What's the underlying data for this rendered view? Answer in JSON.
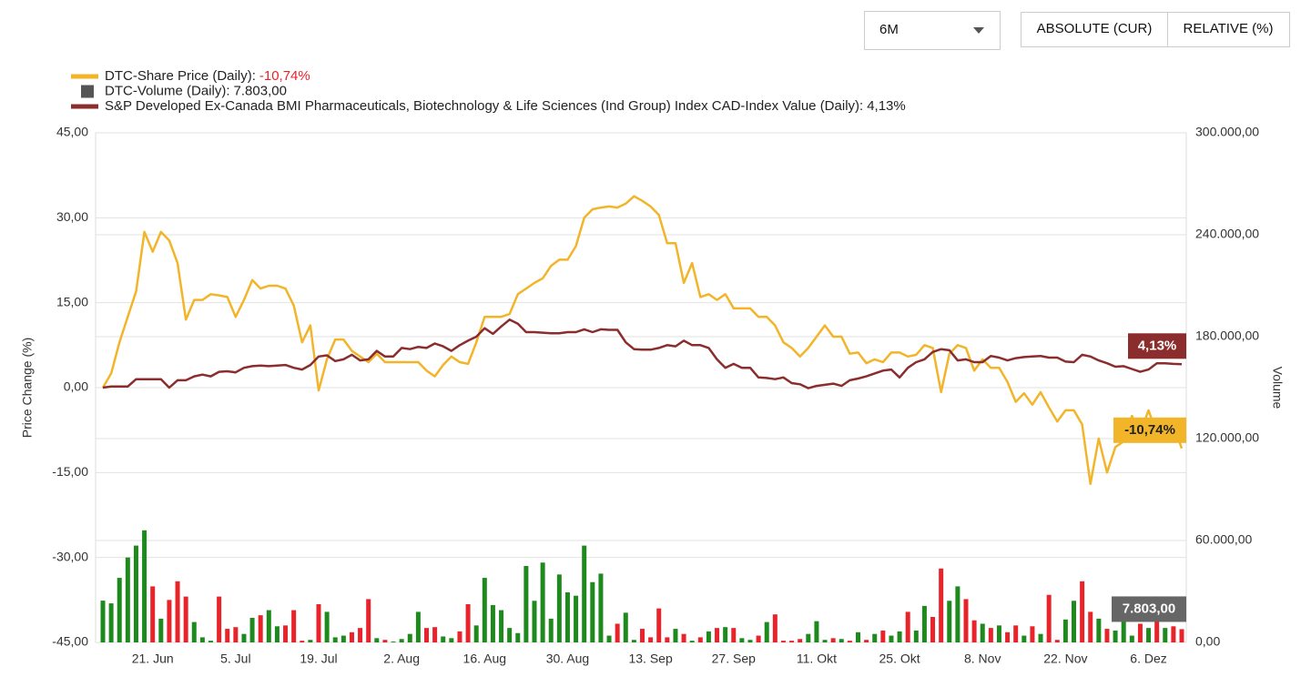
{
  "controls": {
    "period": "6M",
    "absolute": "ABSOLUTE (CUR)",
    "relative": "RELATIVE (%)"
  },
  "chart_data": {
    "type": "line",
    "y_label": "Price Change (%)",
    "y2_label": "Volume",
    "categories": [
      null,
      null,
      null,
      null,
      null,
      null,
      "21. Jun",
      null,
      null,
      null,
      null,
      null,
      null,
      null,
      null,
      null,
      "5. Jul",
      null,
      null,
      null,
      null,
      null,
      null,
      null,
      null,
      null,
      "19. Jul",
      null,
      null,
      null,
      null,
      null,
      null,
      null,
      null,
      null,
      "2. Aug",
      null,
      null,
      null,
      null,
      null,
      null,
      null,
      null,
      null,
      "16. Aug",
      null,
      null,
      null,
      null,
      null,
      null,
      null,
      null,
      null,
      "30. Aug",
      null,
      null,
      null,
      null,
      null,
      null,
      null,
      null,
      null,
      "13. Sep",
      null,
      null,
      null,
      null,
      null,
      null,
      null,
      null,
      null,
      "27. Sep",
      null,
      null,
      null,
      null,
      null,
      null,
      null,
      null,
      null,
      "11. Okt",
      null,
      null,
      null,
      null,
      null,
      null,
      null,
      null,
      null,
      "25. Okt",
      null,
      null,
      null,
      null,
      null,
      null,
      null,
      null,
      null,
      "8. Nov",
      null,
      null,
      null,
      null,
      null,
      null,
      null,
      null,
      null,
      "22. Nov",
      null,
      null,
      null,
      null,
      null,
      null,
      null,
      null,
      null,
      "6. Dez",
      null,
      null,
      null,
      null
    ],
    "ylim": [
      -45,
      45
    ],
    "yticks": [
      {
        "value": -45,
        "label": "-45,00"
      },
      {
        "value": -30,
        "label": "-30,00"
      },
      {
        "value": -15,
        "label": "-15,00"
      },
      {
        "value": 0,
        "label": "0,00"
      },
      {
        "value": 15,
        "label": "15,00"
      },
      {
        "value": 30,
        "label": "30,00"
      },
      {
        "value": 45,
        "label": "45,00"
      }
    ],
    "y2lim": [
      0,
      300000
    ],
    "y2ticks": [
      {
        "value": 0,
        "label": "0,00"
      },
      {
        "value": 60000,
        "label": "60.000,00"
      },
      {
        "value": 120000,
        "label": "120.000,00"
      },
      {
        "value": 180000,
        "label": "180.000,00"
      },
      {
        "value": 240000,
        "label": "240.000,00"
      },
      {
        "value": 300000,
        "label": "300.000,00"
      }
    ],
    "grid": true,
    "series": [
      {
        "name": "DTC-Share Price (Daily):",
        "type": "line",
        "color": "#f2b52a",
        "last_value_label": "-10,74%",
        "values": [
          0,
          2.5,
          8,
          12.5,
          17,
          27.5,
          24,
          27.5,
          26,
          22,
          12,
          15.5,
          15.5,
          16.5,
          16.3,
          16,
          12.5,
          15.5,
          19,
          17.5,
          18,
          18,
          17.5,
          14.5,
          8,
          11,
          -0.5,
          5,
          8.5,
          8.5,
          6.5,
          5.5,
          4.5,
          6,
          4.5,
          4.5,
          4.5,
          4.5,
          4.5,
          3,
          2,
          4,
          5.5,
          4.5,
          4.2,
          8,
          12.5,
          12.5,
          12.5,
          13,
          16.5,
          17.5,
          18.5,
          19.3,
          21.5,
          22.6,
          22.6,
          25,
          30,
          31.5,
          31.8,
          32,
          31.8,
          32.5,
          33.8,
          33,
          32,
          30.5,
          25.5,
          25.5,
          18.5,
          22,
          16,
          16.5,
          15.5,
          16.5,
          14,
          14,
          14,
          12.5,
          12.5,
          11,
          8,
          7,
          5.5,
          7,
          9,
          11,
          9,
          9,
          6,
          6.2,
          4.3,
          5,
          4.5,
          6.2,
          6.2,
          5.5,
          5.8,
          7.5,
          7,
          -0.8,
          6,
          7.5,
          7,
          3,
          5,
          3.5,
          3.5,
          1,
          -2.5,
          -1,
          -3,
          -0.8,
          -3.5,
          -6,
          -4,
          -4,
          -6.5,
          -17,
          -9,
          -15,
          -10.5,
          -9.5,
          -5,
          -8,
          -4,
          -8,
          -5.5,
          -6.5,
          -10.74
        ]
      },
      {
        "name": "DTC-Volume (Daily):",
        "type": "bar",
        "axis": "y2",
        "color": "#555555",
        "up_color": "#1e8a1e",
        "down_color": "#e8232a",
        "last_value_label": "7.803,00",
        "values": [
          24600,
          23000,
          38000,
          50000,
          57000,
          66000,
          33000,
          14000,
          25000,
          36000,
          27000,
          12000,
          3000,
          1000,
          27000,
          8000,
          9000,
          5000,
          14500,
          16000,
          19000,
          9500,
          10000,
          19000,
          1000,
          1500,
          22500,
          18000,
          3000,
          4000,
          6000,
          8500,
          25500,
          2500,
          1500,
          500,
          2000,
          5000,
          18000,
          8500,
          9000,
          3500,
          2500,
          6500,
          22500,
          10000,
          38000,
          22000,
          19000,
          8500,
          5500,
          45000,
          24500,
          47000,
          14000,
          40000,
          29500,
          27500,
          57000,
          35500,
          40500,
          4000,
          11000,
          17500,
          1500,
          8000,
          3000,
          20000,
          3000,
          8000,
          5000,
          1000,
          3000,
          6500,
          8500,
          9000,
          8500,
          2500,
          1500,
          4000,
          12000,
          16500,
          1000,
          1000,
          2000,
          5000,
          12500,
          1500,
          2500,
          2000,
          1000,
          6000,
          1500,
          5000,
          7000,
          4000,
          6500,
          18000,
          7000,
          21500,
          15000,
          43500,
          24500,
          33000,
          25500,
          13000,
          11000,
          8500,
          10000,
          6000,
          10000,
          4000,
          9500,
          5000,
          28000,
          1500,
          13500,
          24500,
          36000,
          18000,
          14000,
          8000,
          7000,
          19000,
          4000,
          11000,
          8500,
          18000,
          8500,
          9500,
          7803
        ]
      },
      {
        "name": "S&P Developed Ex-Canada BMI Pharmaceuticals, Biotechnology & Life Sciences (Ind Group) Index CAD-Index Value (Daily):",
        "type": "line",
        "color": "#8b2d2d",
        "last_value_label": "4,13%",
        "values": [
          0,
          0.2,
          0.2,
          0.2,
          1.5,
          1.5,
          1.5,
          1.5,
          0,
          1.3,
          1.3,
          2,
          2.3,
          2,
          2.8,
          2.9,
          2.7,
          3.5,
          3.8,
          3.9,
          3.8,
          3.9,
          4,
          3.5,
          3.2,
          4,
          5.5,
          5.7,
          4.7,
          5,
          5.8,
          4.8,
          5,
          6.5,
          5.5,
          5.5,
          7,
          6.8,
          7.2,
          7,
          7.8,
          7.3,
          6.5,
          7.5,
          8.3,
          9,
          10.5,
          9.5,
          10.8,
          12,
          11.3,
          9.8,
          9.8,
          9.7,
          9.6,
          9.6,
          9.8,
          9.8,
          10.3,
          9.8,
          10.3,
          10.2,
          10.2,
          8,
          6.8,
          6.7,
          6.7,
          7,
          7.5,
          7.3,
          8.3,
          7.5,
          7.5,
          7,
          5,
          3.5,
          4.2,
          3.5,
          3.5,
          1.8,
          1.7,
          1.5,
          1.8,
          0.8,
          0.6,
          -0.1,
          0.3,
          0.5,
          0.7,
          0.3,
          1.3,
          1.6,
          2,
          2.5,
          3,
          3.2,
          1.8,
          3.5,
          4.5,
          5,
          6.3,
          6.8,
          6.6,
          4.8,
          5,
          4.5,
          4.5,
          5.6,
          5.3,
          4.8,
          5.2,
          5.4,
          5.5,
          5.6,
          5.3,
          5.3,
          4.6,
          4.5,
          5.8,
          5.5,
          4.8,
          4.3,
          3.7,
          3.8,
          3.3,
          2.8,
          3.2,
          4.3,
          4.3,
          4.2,
          4.13
        ]
      }
    ]
  }
}
